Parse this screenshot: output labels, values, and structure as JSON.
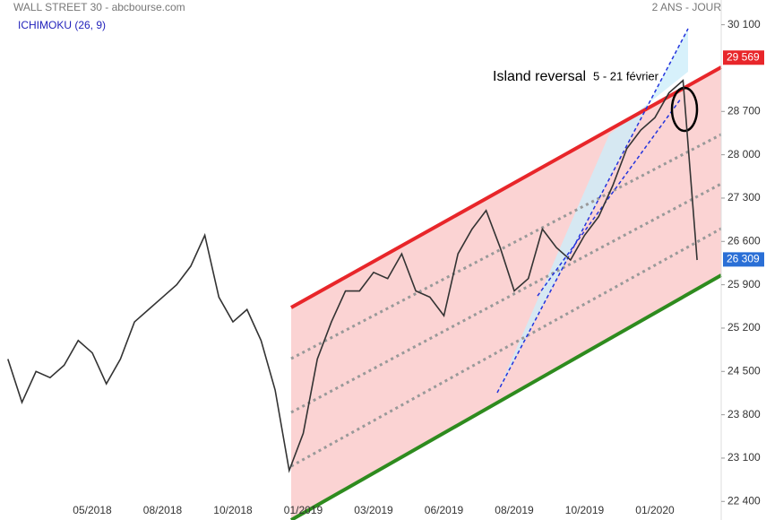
{
  "chart_data": {
    "type": "line",
    "title": "WALL STREET 30 - abcbourse.com",
    "subtitle": "2 ANS - JOUR",
    "indicator": "ICHIMOKU (26, 9)",
    "annotations": [
      "Island reversal",
      "5 - 21 février"
    ],
    "categories": [
      null,
      null,
      null,
      null,
      null,
      null,
      "05/2018",
      null,
      null,
      null,
      null,
      "08/2018",
      null,
      null,
      null,
      null,
      "10/2018",
      null,
      null,
      null,
      null,
      "01/2019",
      null,
      null,
      null,
      null,
      "03/2019",
      null,
      null,
      null,
      null,
      "06/2019",
      null,
      null,
      null,
      null,
      "08/2019",
      null,
      null,
      null,
      null,
      "10/2019",
      null,
      null,
      null,
      null,
      "01/2020",
      null,
      null,
      null
    ],
    "series": [
      {
        "name": "WALL STREET 30",
        "color": "#333333",
        "values": [
          24700,
          24000,
          24500,
          24400,
          24600,
          25000,
          24800,
          24300,
          24700,
          25300,
          25500,
          25700,
          25900,
          26200,
          26700,
          25700,
          25300,
          25500,
          25000,
          24200,
          22900,
          23500,
          24700,
          25300,
          25800,
          25800,
          26100,
          26000,
          26400,
          25800,
          25700,
          25400,
          26400,
          26800,
          27100,
          26500,
          25800,
          26000,
          26800,
          26500,
          26300,
          26700,
          27000,
          27500,
          28100,
          28400,
          28600,
          29000,
          29200,
          26300
        ]
      }
    ],
    "price_markers": [
      {
        "value": 29569,
        "label": "29 569",
        "color": "#e8262a"
      },
      {
        "value": 26309,
        "label": "26 309",
        "color": "#2a6fd6"
      }
    ],
    "ylim": [
      22100,
      30500
    ],
    "yticks": [
      {
        "value": 30100,
        "label": "30 100"
      },
      {
        "value": 28700,
        "label": "28 700"
      },
      {
        "value": 28000,
        "label": "28 000"
      },
      {
        "value": 27300,
        "label": "27 300"
      },
      {
        "value": 26600,
        "label": "26 600"
      },
      {
        "value": 25900,
        "label": "25 900"
      },
      {
        "value": 25200,
        "label": "25 200"
      },
      {
        "value": 24500,
        "label": "24 500"
      },
      {
        "value": 23800,
        "label": "23 800"
      },
      {
        "value": 23100,
        "label": "23 100"
      },
      {
        "value": 22400,
        "label": "22 400"
      }
    ]
  }
}
